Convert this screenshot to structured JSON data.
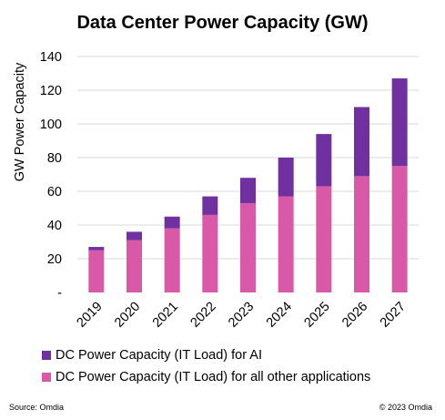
{
  "chart_data": {
    "type": "bar",
    "stacked": true,
    "title": "Data Center Power Capacity (GW)",
    "ylabel": "GW Power Capacity",
    "xlabel": "",
    "categories": [
      "2019",
      "2020",
      "2021",
      "2022",
      "2023",
      "2024",
      "2025",
      "2026",
      "2027"
    ],
    "series": [
      {
        "name": "DC Power Capacity (IT Load) for all other applications",
        "color": "#d959a8",
        "values": [
          25,
          31,
          38,
          46,
          53,
          57,
          63,
          69,
          75
        ]
      },
      {
        "name": "DC Power Capacity (IT Load) for AI",
        "color": "#7030a0",
        "values": [
          2,
          5,
          7,
          11,
          15,
          23,
          31,
          41,
          52
        ]
      }
    ],
    "ylim": [
      0,
      140
    ],
    "yticks": [
      "-",
      "20",
      "40",
      "60",
      "80",
      "100",
      "120",
      "140"
    ],
    "grid": true,
    "legend_position": "bottom-left"
  },
  "footer": {
    "source": "Source: Omdia",
    "copyright": "© 2023 Omdia"
  }
}
